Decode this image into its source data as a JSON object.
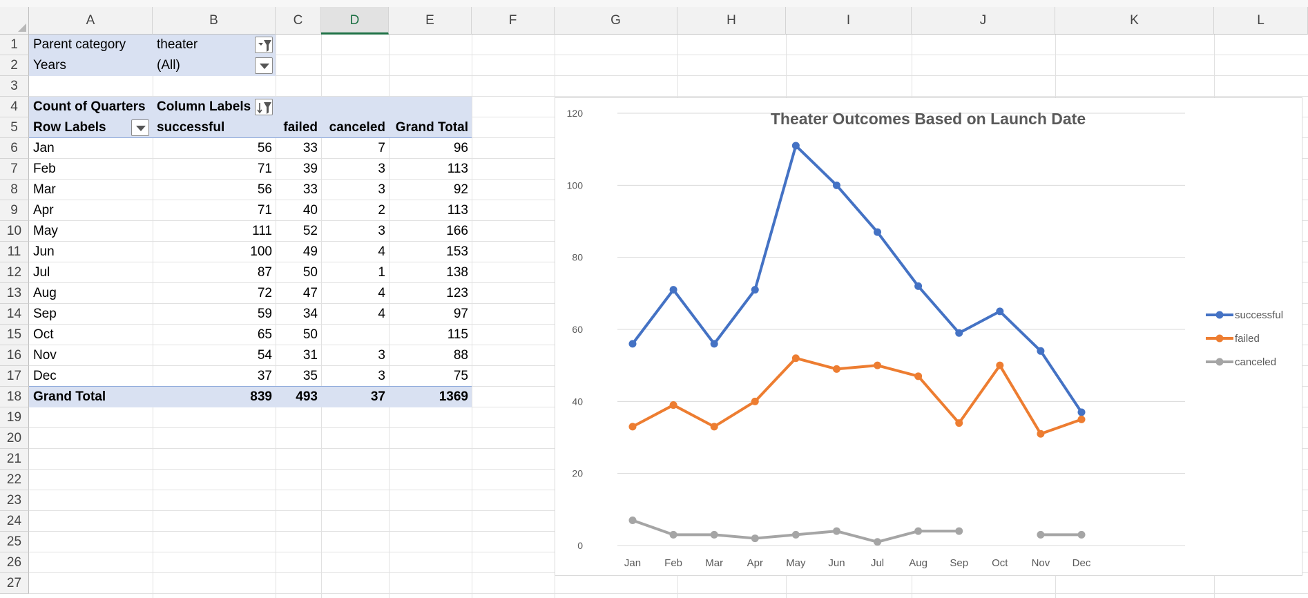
{
  "sheet": {
    "columns": [
      "A",
      "B",
      "C",
      "D",
      "E",
      "F",
      "G",
      "H",
      "I",
      "J",
      "K",
      "L"
    ],
    "active_column": "D",
    "rows": [
      "1",
      "2",
      "3",
      "4",
      "5",
      "6",
      "7",
      "8",
      "9",
      "10",
      "11",
      "12",
      "13",
      "14",
      "15",
      "16",
      "17",
      "18",
      "19",
      "20",
      "21",
      "22",
      "23",
      "24",
      "25",
      "26",
      "27"
    ]
  },
  "pivot": {
    "filters": [
      {
        "label": "Parent category",
        "value": "theater"
      },
      {
        "label": "Years",
        "value": "(All)"
      }
    ],
    "value_label": "Count of Quarters",
    "column_labels": "Column Labels",
    "row_labels": "Row Labels",
    "headers": [
      "successful",
      "failed",
      "canceled",
      "Grand Total"
    ],
    "rows": [
      {
        "label": "Jan",
        "successful": "56",
        "failed": "33",
        "canceled": "7",
        "total": "96"
      },
      {
        "label": "Feb",
        "successful": "71",
        "failed": "39",
        "canceled": "3",
        "total": "113"
      },
      {
        "label": "Mar",
        "successful": "56",
        "failed": "33",
        "canceled": "3",
        "total": "92"
      },
      {
        "label": "Apr",
        "successful": "71",
        "failed": "40",
        "canceled": "2",
        "total": "113"
      },
      {
        "label": "May",
        "successful": "111",
        "failed": "52",
        "canceled": "3",
        "total": "166"
      },
      {
        "label": "Jun",
        "successful": "100",
        "failed": "49",
        "canceled": "4",
        "total": "153"
      },
      {
        "label": "Jul",
        "successful": "87",
        "failed": "50",
        "canceled": "1",
        "total": "138"
      },
      {
        "label": "Aug",
        "successful": "72",
        "failed": "47",
        "canceled": "4",
        "total": "123"
      },
      {
        "label": "Sep",
        "successful": "59",
        "failed": "34",
        "canceled": "4",
        "total": "97"
      },
      {
        "label": "Oct",
        "successful": "65",
        "failed": "50",
        "canceled": "",
        "total": "115"
      },
      {
        "label": "Nov",
        "successful": "54",
        "failed": "31",
        "canceled": "3",
        "total": "88"
      },
      {
        "label": "Dec",
        "successful": "37",
        "failed": "35",
        "canceled": "3",
        "total": "75"
      }
    ],
    "grand_total": {
      "label": "Grand Total",
      "successful": "839",
      "failed": "493",
      "canceled": "37",
      "total": "1369"
    }
  },
  "icons": {
    "filter_applied": "filter-funnel-icon",
    "dropdown": "chevron-down-icon",
    "sort_filter": "sort-filter-icon"
  },
  "colors": {
    "pivot_band": "#d9e1f2",
    "active_column": "#1e7145",
    "successful": "#4472c4",
    "failed": "#ed7d31",
    "canceled": "#a5a5a5"
  },
  "chart_data": {
    "type": "line",
    "title": "Theater Outcomes Based on Launch Date",
    "categories": [
      "Jan",
      "Feb",
      "Mar",
      "Apr",
      "May",
      "Jun",
      "Jul",
      "Aug",
      "Sep",
      "Oct",
      "Nov",
      "Dec"
    ],
    "series": [
      {
        "name": "successful",
        "color": "#4472c4",
        "values": [
          56,
          71,
          56,
          71,
          111,
          100,
          87,
          72,
          59,
          65,
          54,
          37
        ]
      },
      {
        "name": "failed",
        "color": "#ed7d31",
        "values": [
          33,
          39,
          33,
          40,
          52,
          49,
          50,
          47,
          34,
          50,
          31,
          35
        ]
      },
      {
        "name": "canceled",
        "color": "#a5a5a5",
        "values": [
          7,
          3,
          3,
          2,
          3,
          4,
          1,
          4,
          4,
          null,
          3,
          3
        ]
      }
    ],
    "ylim": [
      0,
      120
    ],
    "yticks": [
      0,
      20,
      40,
      60,
      80,
      100,
      120
    ],
    "grid": true,
    "legend": "right",
    "xlabel": "",
    "ylabel": ""
  }
}
